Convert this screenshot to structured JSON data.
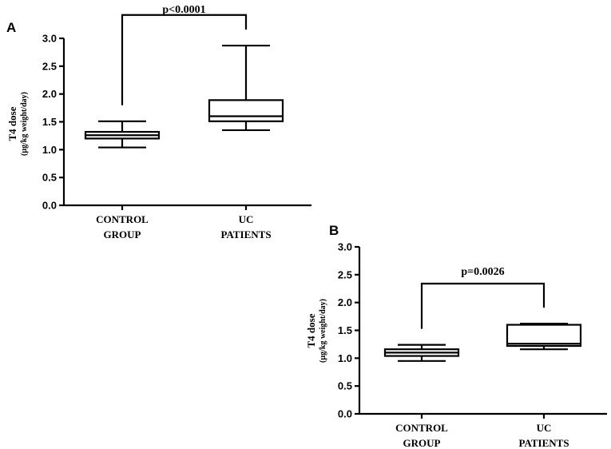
{
  "chart_data": [
    {
      "type": "boxplot",
      "panel": "A",
      "ylabel": "T4 dose",
      "ylabel_unit": "(µg/kg weight/day)",
      "ylim": [
        0,
        3.0
      ],
      "yticks": [
        "0.0",
        "0.5",
        "1.0",
        "1.5",
        "2.0",
        "2.5",
        "3.0"
      ],
      "categories": [
        {
          "line1": "CONTROL",
          "line2": "GROUP",
          "min": 1.04,
          "q1": 1.2,
          "median": 1.26,
          "q3": 1.32,
          "max": 1.51
        },
        {
          "line1": "UC",
          "line2": "PATIENTS",
          "min": 1.35,
          "q1": 1.51,
          "median": 1.6,
          "q3": 1.89,
          "max": 2.87
        }
      ],
      "annotation": {
        "text": "p<0.0001",
        "level": 3.42
      }
    },
    {
      "type": "boxplot",
      "panel": "B",
      "ylabel": "T4 dose",
      "ylabel_unit": "(µg/kg weight/day)",
      "ylim": [
        0,
        3.0
      ],
      "yticks": [
        "0.0",
        "0.5",
        "1.0",
        "1.5",
        "2.0",
        "2.5",
        "3.0"
      ],
      "categories": [
        {
          "line1": "CONTROL",
          "line2": "GROUP",
          "min": 0.95,
          "q1": 1.04,
          "median": 1.1,
          "q3": 1.16,
          "max": 1.24
        },
        {
          "line1": "UC",
          "line2": "PATIENTS",
          "min": 1.16,
          "q1": 1.22,
          "median": 1.26,
          "q3": 1.6,
          "max": 1.62
        }
      ],
      "annotation": {
        "text": "p=0.0026",
        "level": 2.34
      }
    }
  ]
}
